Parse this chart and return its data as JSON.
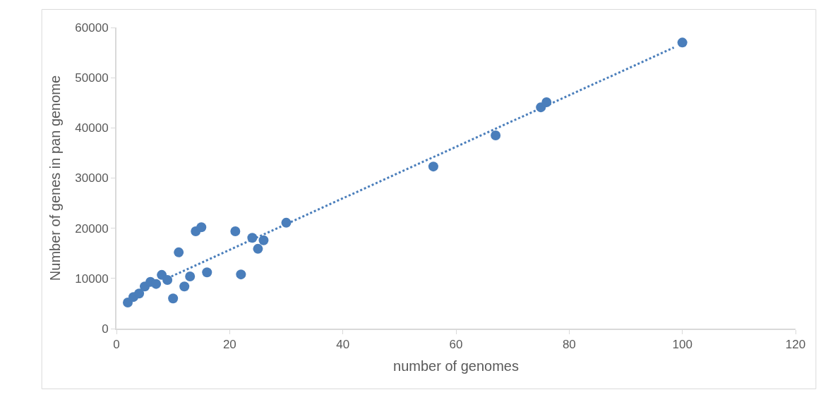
{
  "chart_data": {
    "type": "scatter",
    "xlabel": "number of genomes",
    "ylabel": "Number of genes in pan genome",
    "marker": "circle",
    "xlim": [
      0,
      120
    ],
    "xticks": [
      0,
      20,
      40,
      60,
      80,
      100,
      120
    ],
    "ylim": [
      0,
      60000
    ],
    "yticks": [
      0,
      10000,
      20000,
      30000,
      40000,
      50000,
      60000
    ],
    "series": [
      {
        "color": "#4a7ebb",
        "x": [
          2,
          3,
          4,
          5,
          6,
          7,
          8,
          9,
          10,
          11,
          12,
          13,
          14,
          15,
          16,
          21,
          22,
          24,
          25,
          26,
          30,
          56,
          67,
          75,
          76,
          100
        ],
        "values": [
          5200,
          6300,
          7000,
          8400,
          9300,
          8900,
          10700,
          9700,
          6000,
          15200,
          8400,
          10400,
          19400,
          20200,
          11200,
          19400,
          10800,
          18100,
          15900,
          17600,
          21100,
          32300,
          38500,
          44100,
          45100,
          57000
        ]
      },
      {
        "type": "line",
        "line_style": "dotted",
        "marker": "none",
        "color": "#4a7ebb",
        "x": [
          9.7,
          98.5
        ],
        "values": [
          10400,
          56000
        ]
      }
    ]
  }
}
